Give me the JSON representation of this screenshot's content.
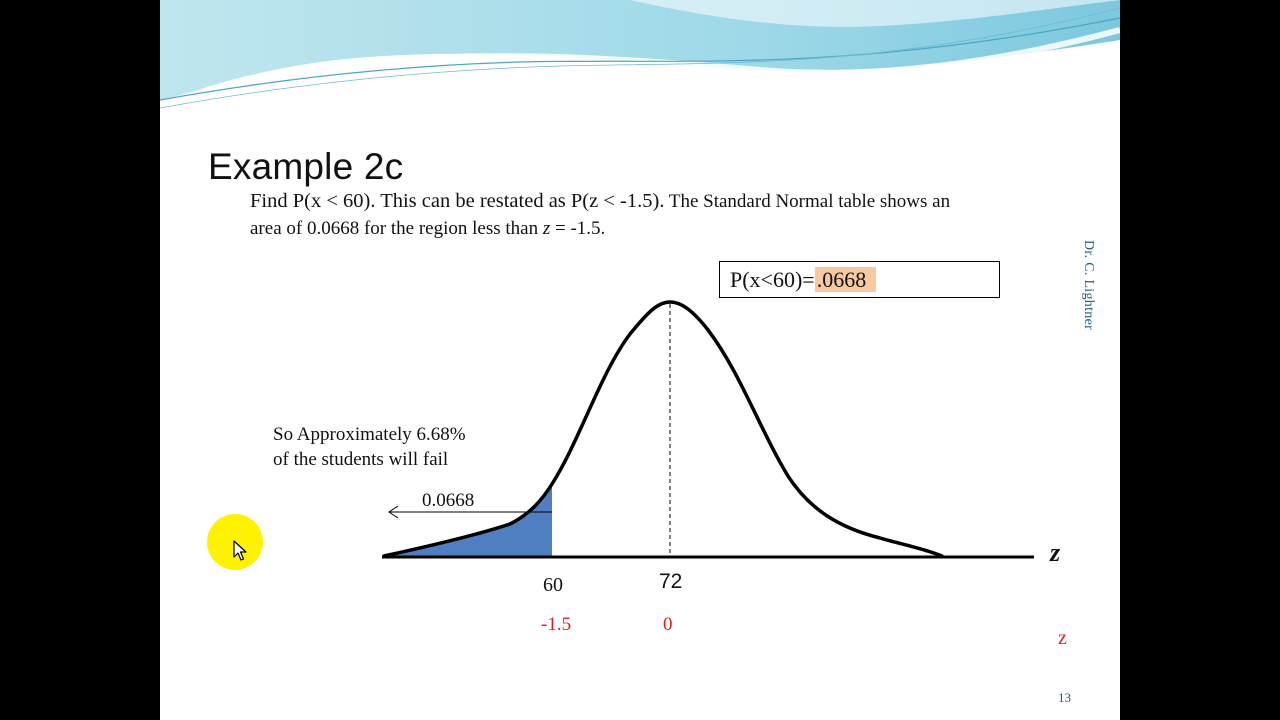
{
  "slide": {
    "title": "Example 2c",
    "line1": {
      "part1": "Find P(x < 60). This can be restated as P(z <  -1.5).",
      "part2": "  The Standard Normal table shows an"
    },
    "line2": {
      "part1": "area of 0.0668 for the region less than",
      "var": "z",
      "part2": " = -1.5."
    },
    "answer_box": {
      "label": "P(x<60)=",
      "value": ".0668"
    },
    "author": "Dr. C. Lightner",
    "note": {
      "line1": "So Approximately 6.68%",
      "line2": "of the students will fail"
    },
    "graph": {
      "area_label": "0.0668",
      "x_label_60": "60",
      "x_label_72": "72",
      "z_label_neg": "-1.5",
      "z_label_zero": "0",
      "axis_var": "z",
      "z_side_label": "z"
    },
    "page_number": "13"
  },
  "colors": {
    "shaded_region": "#4f7fc1",
    "z_values": "#e02020",
    "author": "#1b5e8a",
    "answer_highlight": "#f8c9a0",
    "cursor_highlight": "#fff200"
  }
}
